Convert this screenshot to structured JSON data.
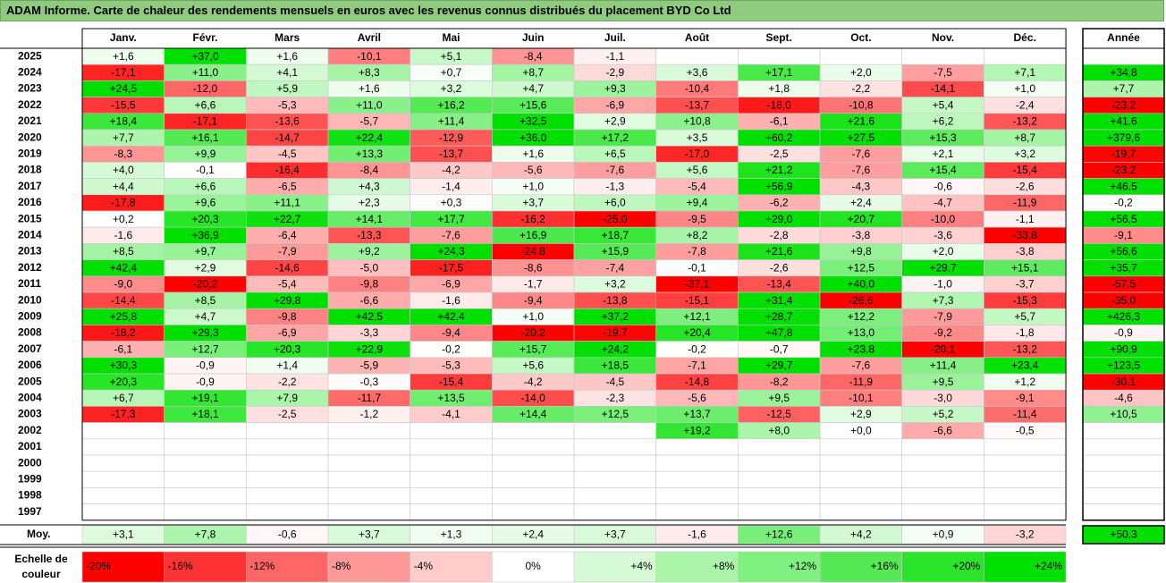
{
  "title": "ADAM Informe. Carte de chaleur des rendements mensuels en euros avec les revenus connus distribués du placement BYD Co Ltd",
  "chart_data": {
    "type": "heatmap",
    "title": "ADAM Informe. Carte de chaleur des rendements mensuels en euros avec les revenus connus distribués du placement BYD Co Ltd",
    "months": [
      "Janv.",
      "Févr.",
      "Mars",
      "Avril",
      "Mai",
      "Juin",
      "Juil.",
      "Août",
      "Sept.",
      "Oct.",
      "Nov.",
      "Déc."
    ],
    "year_header": "Année",
    "rows": [
      {
        "year": "2025",
        "values": [
          "+1,6",
          "+37,0",
          "+1,6",
          "-10,1",
          "+5,1",
          "-8,4",
          "-1,1",
          "",
          "",
          "",
          "",
          ""
        ],
        "annual": ""
      },
      {
        "year": "2024",
        "values": [
          "-17,1",
          "+11,0",
          "+4,1",
          "+8,3",
          "+0,7",
          "+8,7",
          "-2,9",
          "+3,6",
          "+17,1",
          "+2,0",
          "-7,5",
          "+7,1"
        ],
        "annual": "+34,8"
      },
      {
        "year": "2023",
        "values": [
          "+24,5",
          "-12,0",
          "+5,9",
          "+1,6",
          "+3,2",
          "+4,7",
          "+9,3",
          "-10,4",
          "+1,8",
          "-2,2",
          "-14,1",
          "+1,0"
        ],
        "annual": "+7,7"
      },
      {
        "year": "2022",
        "values": [
          "-15,5",
          "+6,6",
          "-5,3",
          "+11,0",
          "+16,2",
          "+15,6",
          "-6,9",
          "-13,7",
          "-18,0",
          "-10,8",
          "+5,4",
          "-2,4"
        ],
        "annual": "-23,2"
      },
      {
        "year": "2021",
        "values": [
          "+18,4",
          "-17,1",
          "-13,6",
          "-5,7",
          "+11,4",
          "+32,5",
          "+2,9",
          "+10,8",
          "-6,1",
          "+21,6",
          "+6,2",
          "-13,2"
        ],
        "annual": "+41,6"
      },
      {
        "year": "2020",
        "values": [
          "+7,7",
          "+16,1",
          "-14,7",
          "+22,4",
          "-12,9",
          "+36,0",
          "+17,2",
          "+3,5",
          "+60,2",
          "+27,5",
          "+15,3",
          "+8,7"
        ],
        "annual": "+379,6"
      },
      {
        "year": "2019",
        "values": [
          "-8,3",
          "+9,9",
          "-4,5",
          "+13,3",
          "-13,7",
          "+1,6",
          "+6,5",
          "-17,0",
          "-2,5",
          "-7,6",
          "+2,1",
          "+3,2"
        ],
        "annual": "-19,7"
      },
      {
        "year": "2018",
        "values": [
          "+4,0",
          "-0,1",
          "-16,4",
          "-8,4",
          "-4,2",
          "-5,6",
          "-7,6",
          "+5,6",
          "+21,2",
          "-7,6",
          "+15,4",
          "-15,4"
        ],
        "annual": "-23,2"
      },
      {
        "year": "2017",
        "values": [
          "+4,4",
          "+6,6",
          "-6,5",
          "+4,3",
          "-1,4",
          "+1,0",
          "-1,3",
          "-5,4",
          "+56,9",
          "-4,3",
          "-0,6",
          "-2,6"
        ],
        "annual": "+46,5"
      },
      {
        "year": "2016",
        "values": [
          "-17,8",
          "+9,6",
          "+11,1",
          "+2,3",
          "+0,3",
          "+3,7",
          "+6,0",
          "+9,4",
          "-6,2",
          "+2,4",
          "-4,7",
          "-11,9"
        ],
        "annual": "-0,2"
      },
      {
        "year": "2015",
        "values": [
          "+0,2",
          "+20,3",
          "+22,7",
          "+14,1",
          "+17,7",
          "-16,2",
          "-25,0",
          "-9,5",
          "+29,0",
          "+20,7",
          "-10,0",
          "-1,1"
        ],
        "annual": "+56,5"
      },
      {
        "year": "2014",
        "values": [
          "-1,6",
          "+36,9",
          "-6,4",
          "-13,3",
          "-7,6",
          "+16,9",
          "+18,7",
          "+8,2",
          "-2,8",
          "-3,8",
          "-3,6",
          "-33,8"
        ],
        "annual": "-9,1"
      },
      {
        "year": "2013",
        "values": [
          "+8,5",
          "+9,7",
          "-7,9",
          "+9,2",
          "+24,3",
          "-24,8",
          "+15,9",
          "-7,8",
          "+21,6",
          "+9,8",
          "+2,0",
          "-3,8"
        ],
        "annual": "+56,6"
      },
      {
        "year": "2012",
        "values": [
          "+42,4",
          "+2,9",
          "-14,6",
          "-5,0",
          "-17,5",
          "-8,6",
          "-7,4",
          "-0,1",
          "-2,6",
          "+12,5",
          "+29,7",
          "+15,1"
        ],
        "annual": "+35,7"
      },
      {
        "year": "2011",
        "values": [
          "-9,0",
          "-20,2",
          "-5,4",
          "-9,8",
          "-6,9",
          "-1,7",
          "+3,2",
          "-37,1",
          "-13,4",
          "+40,0",
          "-1,0",
          "-3,7"
        ],
        "annual": "-57,5"
      },
      {
        "year": "2010",
        "values": [
          "-14,4",
          "+8,5",
          "+29,8",
          "-6,6",
          "-1,6",
          "-9,4",
          "-13,8",
          "-15,1",
          "+31,4",
          "-26,6",
          "+7,3",
          "-15,3"
        ],
        "annual": "-35,0"
      },
      {
        "year": "2009",
        "values": [
          "+25,8",
          "+4,7",
          "-9,8",
          "+42,5",
          "+42,4",
          "+1,0",
          "+37,2",
          "+12,1",
          "+28,7",
          "+12,2",
          "-7,9",
          "+5,7"
        ],
        "annual": "+426,3"
      },
      {
        "year": "2008",
        "values": [
          "-18,2",
          "+29,3",
          "-6,9",
          "-3,3",
          "-9,4",
          "-20,2",
          "-19,7",
          "+20,4",
          "+47,8",
          "+13,0",
          "-9,2",
          "-1,8"
        ],
        "annual": "-0,9"
      },
      {
        "year": "2007",
        "values": [
          "-6,1",
          "+12,7",
          "+20,3",
          "+22,9",
          "-0,2",
          "+15,7",
          "+24,2",
          "-0,2",
          "-0,7",
          "+23,8",
          "-20,1",
          "-13,2"
        ],
        "annual": "+90,9"
      },
      {
        "year": "2006",
        "values": [
          "+30,3",
          "-0,9",
          "+1,4",
          "-5,9",
          "-5,3",
          "+5,6",
          "+18,5",
          "-7,1",
          "+29,7",
          "-7,6",
          "+11,4",
          "+23,4"
        ],
        "annual": "+123,5"
      },
      {
        "year": "2005",
        "values": [
          "+20,3",
          "-0,9",
          "-2,2",
          "-0,3",
          "-15,4",
          "-4,2",
          "-4,5",
          "-14,8",
          "-8,2",
          "-11,9",
          "+9,5",
          "+1,2"
        ],
        "annual": "-30,1"
      },
      {
        "year": "2004",
        "values": [
          "+6,7",
          "+19,1",
          "+7,9",
          "-11,7",
          "+13,5",
          "-14,0",
          "-2,3",
          "-5,6",
          "+9,5",
          "-10,1",
          "-3,0",
          "-9,1"
        ],
        "annual": "-4,6"
      },
      {
        "year": "2003",
        "values": [
          "-17,3",
          "+18,1",
          "-2,5",
          "-1,2",
          "-4,1",
          "+14,4",
          "+12,5",
          "+13,7",
          "-12,5",
          "+2,9",
          "+5,2",
          "-11,4"
        ],
        "annual": "+10,5"
      },
      {
        "year": "2002",
        "values": [
          "",
          "",
          "",
          "",
          "",
          "",
          "",
          "+19,2",
          "+8,0",
          "+0,0",
          "-6,6",
          "-0,5"
        ],
        "annual": ""
      },
      {
        "year": "2001",
        "values": [
          "",
          "",
          "",
          "",
          "",
          "",
          "",
          "",
          "",
          "",
          "",
          ""
        ],
        "annual": ""
      },
      {
        "year": "2000",
        "values": [
          "",
          "",
          "",
          "",
          "",
          "",
          "",
          "",
          "",
          "",
          "",
          ""
        ],
        "annual": ""
      },
      {
        "year": "1999",
        "values": [
          "",
          "",
          "",
          "",
          "",
          "",
          "",
          "",
          "",
          "",
          "",
          ""
        ],
        "annual": ""
      },
      {
        "year": "1998",
        "values": [
          "",
          "",
          "",
          "",
          "",
          "",
          "",
          "",
          "",
          "",
          "",
          ""
        ],
        "annual": ""
      },
      {
        "year": "1997",
        "values": [
          "",
          "",
          "",
          "",
          "",
          "",
          "",
          "",
          "",
          "",
          "",
          ""
        ],
        "annual": ""
      }
    ],
    "average": {
      "label": "Moy.",
      "values": [
        "+3,1",
        "+7,8",
        "-0,6",
        "+3,7",
        "+1,3",
        "+2,4",
        "+3,7",
        "-1,6",
        "+12,6",
        "+4,2",
        "+0,9",
        "-3,2"
      ],
      "annual": "+50,3"
    },
    "scale": {
      "label_line1": "Echelle de",
      "label_line2": "couleur",
      "labels": [
        "-20%",
        "-16%",
        "-12%",
        "-8%",
        "-4%",
        "0%",
        "+4%",
        "+8%",
        "+12%",
        "+16%",
        "+20%",
        "+24%"
      ],
      "values": [
        -20,
        -16,
        -12,
        -8,
        -4,
        0,
        4,
        8,
        12,
        16,
        20,
        24
      ]
    },
    "colors": {
      "negative": "#ff0000",
      "neutral": "#ffffff",
      "positive": "#00e000",
      "title_bg": "#8fcb7e"
    }
  }
}
